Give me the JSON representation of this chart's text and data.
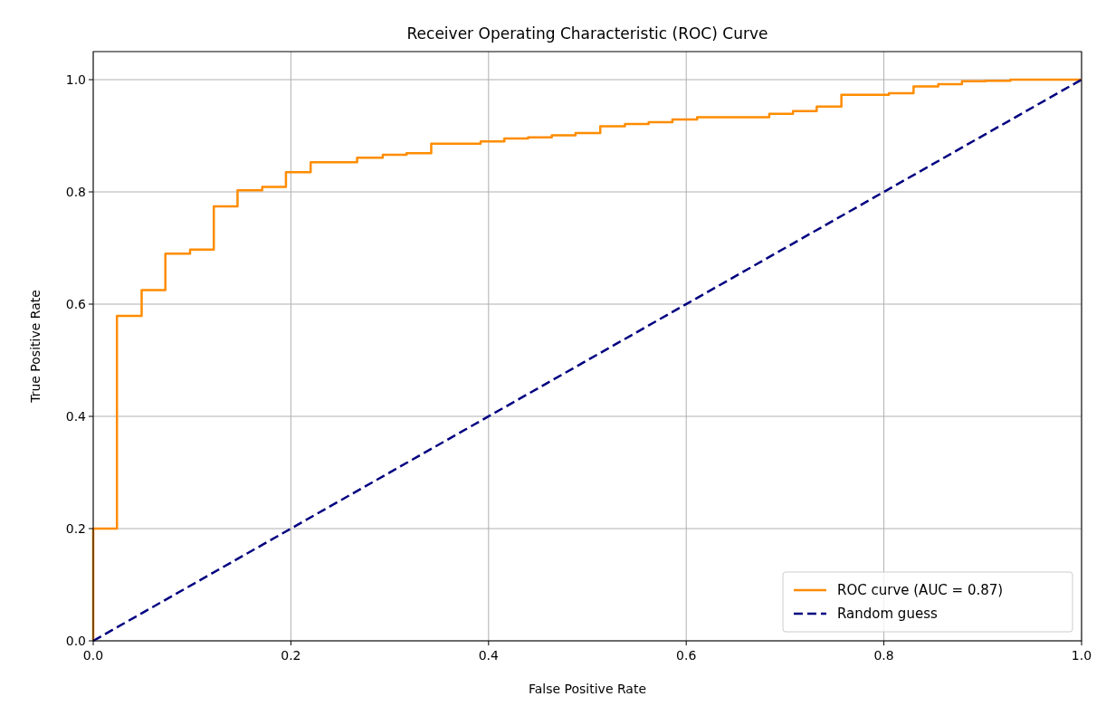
{
  "chart_data": {
    "type": "line",
    "title": "Receiver Operating Characteristic (ROC) Curve",
    "xlabel": "False Positive Rate",
    "ylabel": "True Positive Rate",
    "series": [
      {
        "type": "step",
        "name": "ROC curve (AUC = 0.87)",
        "color": "#ff8c00",
        "x": [
          0,
          0,
          0.024,
          0.049,
          0.073,
          0.098,
          0.122,
          0.146,
          0.171,
          0.195,
          0.22,
          0.267,
          0.293,
          0.317,
          0.342,
          0.392,
          0.416,
          0.44,
          0.464,
          0.488,
          0.513,
          0.538,
          0.562,
          0.586,
          0.611,
          0.684,
          0.708,
          0.732,
          0.757,
          0.805,
          0.83,
          0.855,
          0.879,
          0.903,
          0.928,
          1
        ],
        "values": [
          0,
          0.2,
          0.579,
          0.625,
          0.69,
          0.697,
          0.774,
          0.803,
          0.809,
          0.835,
          0.853,
          0.861,
          0.866,
          0.869,
          0.886,
          0.89,
          0.895,
          0.897,
          0.901,
          0.905,
          0.917,
          0.921,
          0.924,
          0.929,
          0.933,
          0.939,
          0.944,
          0.952,
          0.973,
          0.976,
          0.988,
          0.992,
          0.997,
          0.998,
          1,
          1
        ]
      },
      {
        "name": "Random guess",
        "color": "#000080",
        "line_style": "dashed",
        "x": [
          0,
          1
        ],
        "values": [
          0,
          1
        ]
      }
    ],
    "xlim": [
      0,
      1
    ],
    "ylim": [
      0,
      1.05
    ],
    "xticks": [
      {
        "value": 0,
        "label": "0.0"
      },
      0.2,
      0.4,
      0.6,
      0.8,
      {
        "value": 1,
        "label": "1.0"
      }
    ],
    "yticks": [
      {
        "value": 0,
        "label": "0.0"
      },
      0.2,
      0.4,
      0.6,
      0.8,
      {
        "value": 1,
        "label": "1.0"
      }
    ],
    "grid": true,
    "legend": "bottom right"
  }
}
